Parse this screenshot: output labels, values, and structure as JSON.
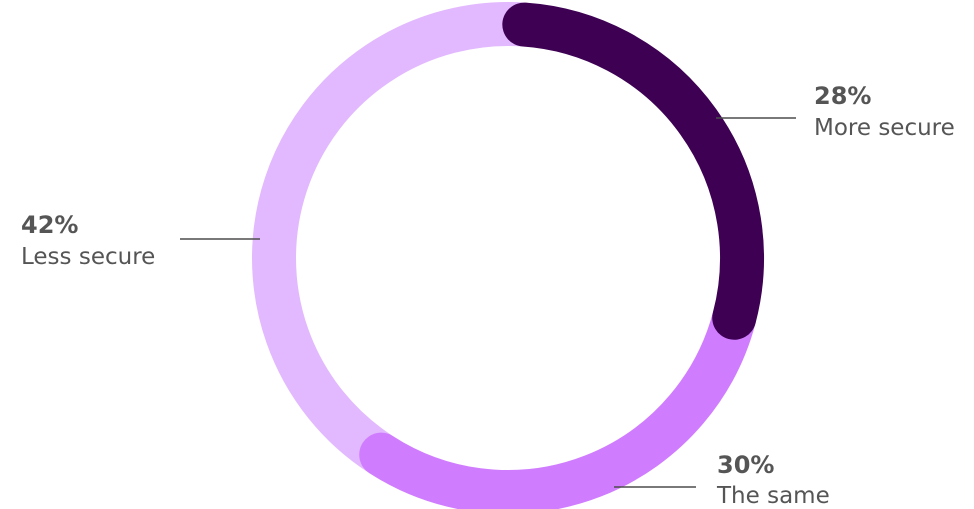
{
  "chart_data": {
    "type": "pie",
    "variant": "donut",
    "categories": [
      "More secure",
      "The same",
      "Less secure"
    ],
    "values": [
      28,
      30,
      42
    ],
    "value_labels": [
      "28%",
      "30%",
      "42%"
    ],
    "colors": [
      "#3d0053",
      "#d07cff",
      "#e2b8fe"
    ],
    "title": "",
    "legend": "none"
  }
}
